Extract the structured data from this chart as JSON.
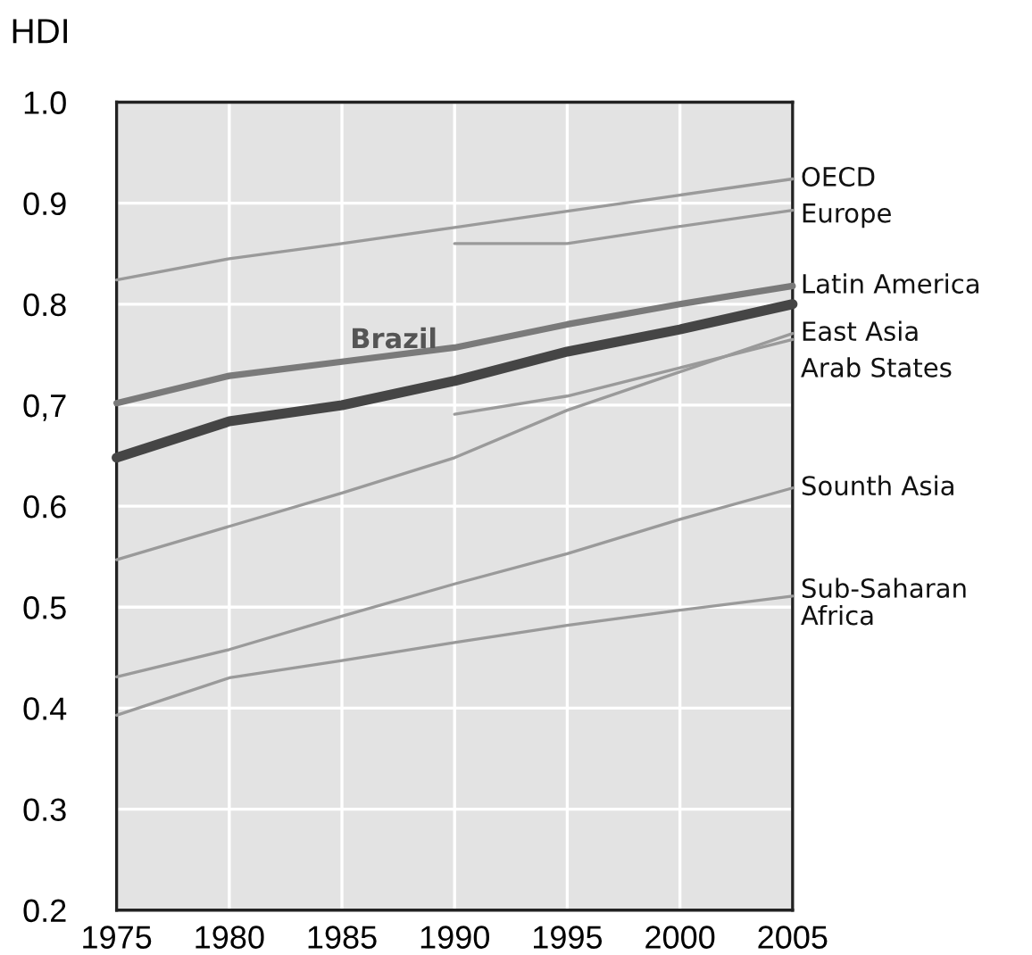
{
  "chart_data": {
    "type": "line",
    "title": "HDI",
    "x": [
      1975,
      1980,
      1985,
      1990,
      1995,
      2000,
      2005
    ],
    "xlim": [
      1975,
      2005
    ],
    "xticks": [
      1975,
      1980,
      1985,
      1990,
      1995,
      2000,
      2005
    ],
    "ylim": [
      0.2,
      1.0
    ],
    "yticks": [
      0.2,
      0.3,
      0.4,
      0.5,
      0.6,
      {
        "value": 0.7,
        "label": "0,7"
      },
      0.8,
      0.9,
      {
        "value": 1.0,
        "label": "1.0"
      }
    ],
    "grid": true,
    "legend": false,
    "marker": "none",
    "line_style": "solid",
    "series": [
      {
        "name": "OECD",
        "color": "#9a9a9a",
        "values": [
          0.824,
          0.845,
          0.86,
          0.876,
          0.892,
          0.908,
          0.924
        ]
      },
      {
        "name": "Europe",
        "color": "#9a9a9a",
        "values": [
          null,
          null,
          null,
          0.86,
          0.86,
          0.877,
          0.893
        ]
      },
      {
        "name": "Latin America",
        "color": "#7a7a7a",
        "values": [
          0.702,
          0.729,
          0.743,
          0.757,
          0.78,
          0.8,
          0.818
        ]
      },
      {
        "color": "#454545",
        "values": [
          0.648,
          0.684,
          0.7,
          0.724,
          0.753,
          0.775,
          0.8
        ]
      },
      {
        "name": "East Asia",
        "color": "#9a9a9a",
        "values": [
          0.547,
          0.58,
          0.613,
          0.648,
          0.695,
          0.733,
          0.771
        ]
      },
      {
        "name": "Arab States",
        "color": "#9a9a9a",
        "values": [
          null,
          null,
          null,
          0.691,
          0.709,
          0.737,
          0.765
        ]
      },
      {
        "name": "Sounth Asia",
        "color": "#9a9a9a",
        "values": [
          0.431,
          0.458,
          0.491,
          0.523,
          0.553,
          0.587,
          0.618
        ]
      },
      {
        "name": "Sub-Saharan\nAfrica",
        "color": "#9a9a9a",
        "values": [
          0.393,
          0.43,
          0.447,
          0.465,
          0.482,
          0.497,
          0.511
        ]
      }
    ],
    "annotations": [
      "Brazil"
    ]
  }
}
